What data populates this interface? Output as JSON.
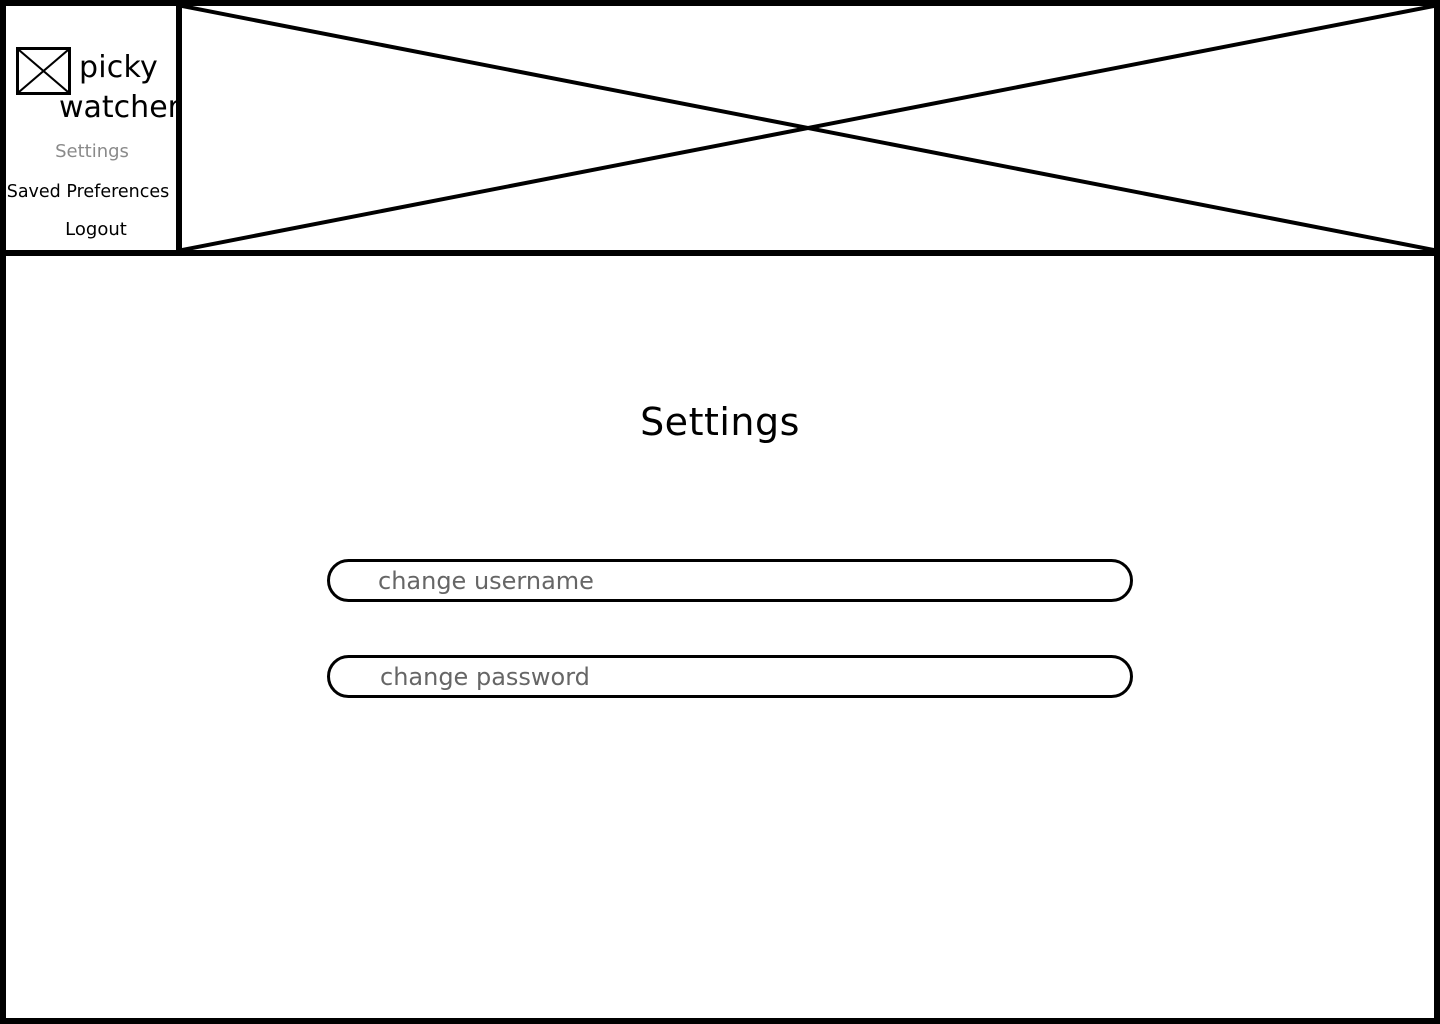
{
  "brand": {
    "name_line_1": "picky",
    "name_line_2": "watcher",
    "logo_icon": "image-placeholder-icon"
  },
  "sidebar": {
    "items": [
      {
        "label": "Settings",
        "state": "active",
        "color": "#8a8a8a"
      },
      {
        "label": "Saved Preferences",
        "state": "default",
        "color": "#000000"
      },
      {
        "label": "Logout",
        "state": "default",
        "color": "#000000"
      }
    ]
  },
  "banner": {
    "icon": "image-placeholder-icon"
  },
  "main": {
    "title": "Settings",
    "fields": {
      "username": {
        "placeholder": "change username",
        "value": ""
      },
      "password": {
        "placeholder": "change password",
        "value": ""
      }
    }
  },
  "colors": {
    "border": "#000000",
    "background": "#ffffff",
    "placeholder_text": "#666666"
  }
}
